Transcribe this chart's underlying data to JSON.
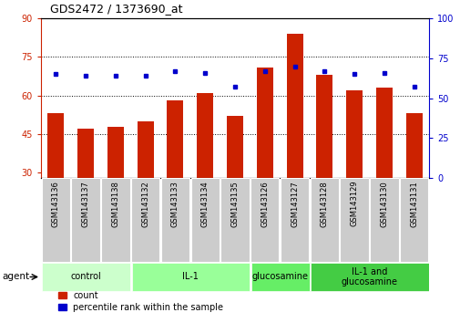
{
  "title": "GDS2472 / 1373690_at",
  "samples": [
    "GSM143136",
    "GSM143137",
    "GSM143138",
    "GSM143132",
    "GSM143133",
    "GSM143134",
    "GSM143135",
    "GSM143126",
    "GSM143127",
    "GSM143128",
    "GSM143129",
    "GSM143130",
    "GSM143131"
  ],
  "bar_values": [
    53,
    47,
    48,
    50,
    58,
    61,
    52,
    71,
    84,
    68,
    62,
    63,
    53
  ],
  "blue_dot_values": [
    65,
    64,
    64,
    64,
    67,
    66,
    57,
    67,
    70,
    67,
    65,
    66,
    57
  ],
  "groups": [
    {
      "label": "control",
      "start": 0,
      "end": 3,
      "color": "#ccffcc"
    },
    {
      "label": "IL-1",
      "start": 3,
      "end": 7,
      "color": "#99ff99"
    },
    {
      "label": "glucosamine",
      "start": 7,
      "end": 9,
      "color": "#66ee66"
    },
    {
      "label": "IL-1 and\nglucosamine",
      "start": 9,
      "end": 13,
      "color": "#44cc44"
    }
  ],
  "ylim_left": [
    28,
    90
  ],
  "ylim_right": [
    0,
    100
  ],
  "yticks_left": [
    30,
    45,
    60,
    75,
    90
  ],
  "yticks_right": [
    0,
    25,
    50,
    75,
    100
  ],
  "bar_color": "#cc2200",
  "dot_color": "#0000cc",
  "grid_ticks": [
    45,
    60,
    75
  ],
  "legend_items": [
    "count",
    "percentile rank within the sample"
  ],
  "bg_color": "#ffffff"
}
